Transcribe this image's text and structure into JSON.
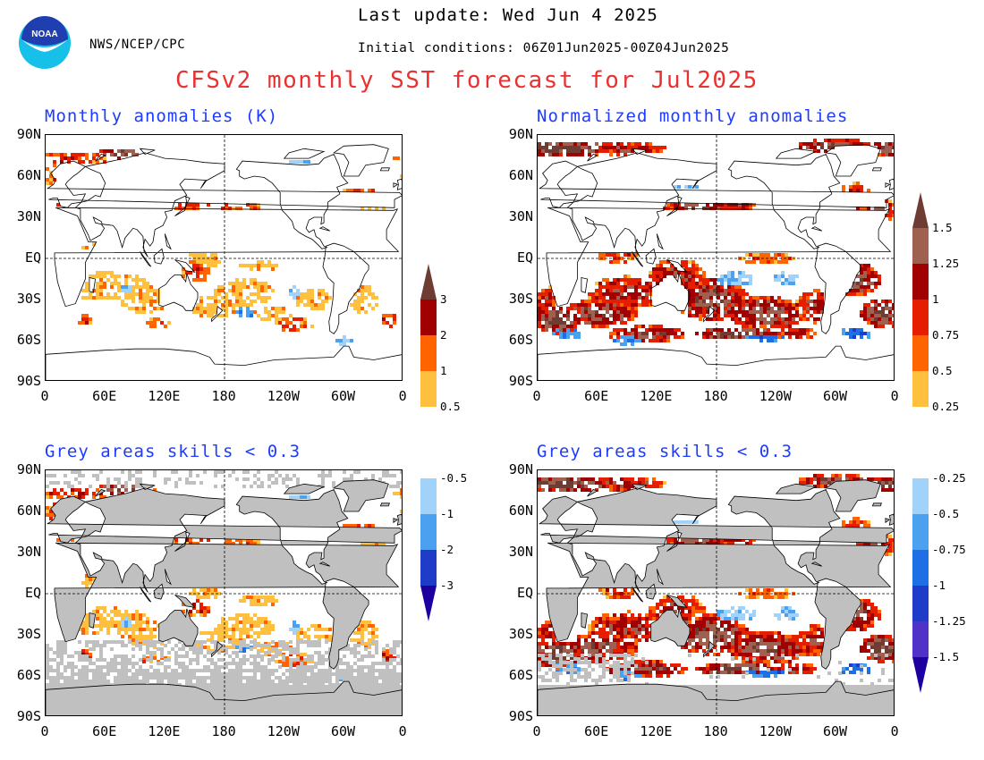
{
  "header": {
    "agency": "NWS/NCEP/CPC",
    "last_update": "Last update: Wed Jun 4 2025",
    "initial_conditions": "Initial conditions: 06Z01Jun2025-00Z04Jun2025",
    "title": "CFSv2 monthly SST forecast for Jul2025",
    "logo_text": "NOAA"
  },
  "panels": {
    "top_left": {
      "title": "Monthly anomalies (K)"
    },
    "top_right": {
      "title": "Normalized monthly anomalies"
    },
    "bottom_left": {
      "title": "Grey areas skills < 0.3"
    },
    "bottom_right": {
      "title": "Grey areas skills < 0.3"
    }
  },
  "axes": {
    "lat_labels": [
      "90N",
      "60N",
      "30N",
      "EQ",
      "30S",
      "60S",
      "90S"
    ],
    "lon_labels": [
      "0",
      "60E",
      "120E",
      "180",
      "120W",
      "60W",
      "0"
    ]
  },
  "colorbar_left": {
    "labels": [
      "3",
      "2",
      "1",
      "0.5",
      "-0.5",
      "-1",
      "-2",
      "-3"
    ]
  },
  "colorbar_right": {
    "labels": [
      "1.5",
      "1.25",
      "1",
      "0.75",
      "0.5",
      "0.25",
      "-0.25",
      "-0.5",
      "-0.75",
      "-1",
      "-1.25",
      "-1.5"
    ]
  },
  "colors": {
    "title_red": "#e83232",
    "panel_title_blue": "#1e3cff",
    "skill_grey": "#c0c0c0",
    "palette_positive": [
      "#ffc040",
      "#ff6400",
      "#e61e00",
      "#a00000",
      "#a06050",
      "#6e3c32"
    ],
    "palette_negative": [
      "#a0d2fa",
      "#4ba0f0",
      "#1e6ee6",
      "#1e3cc8",
      "#5032c8",
      "#1e00a0"
    ]
  }
}
